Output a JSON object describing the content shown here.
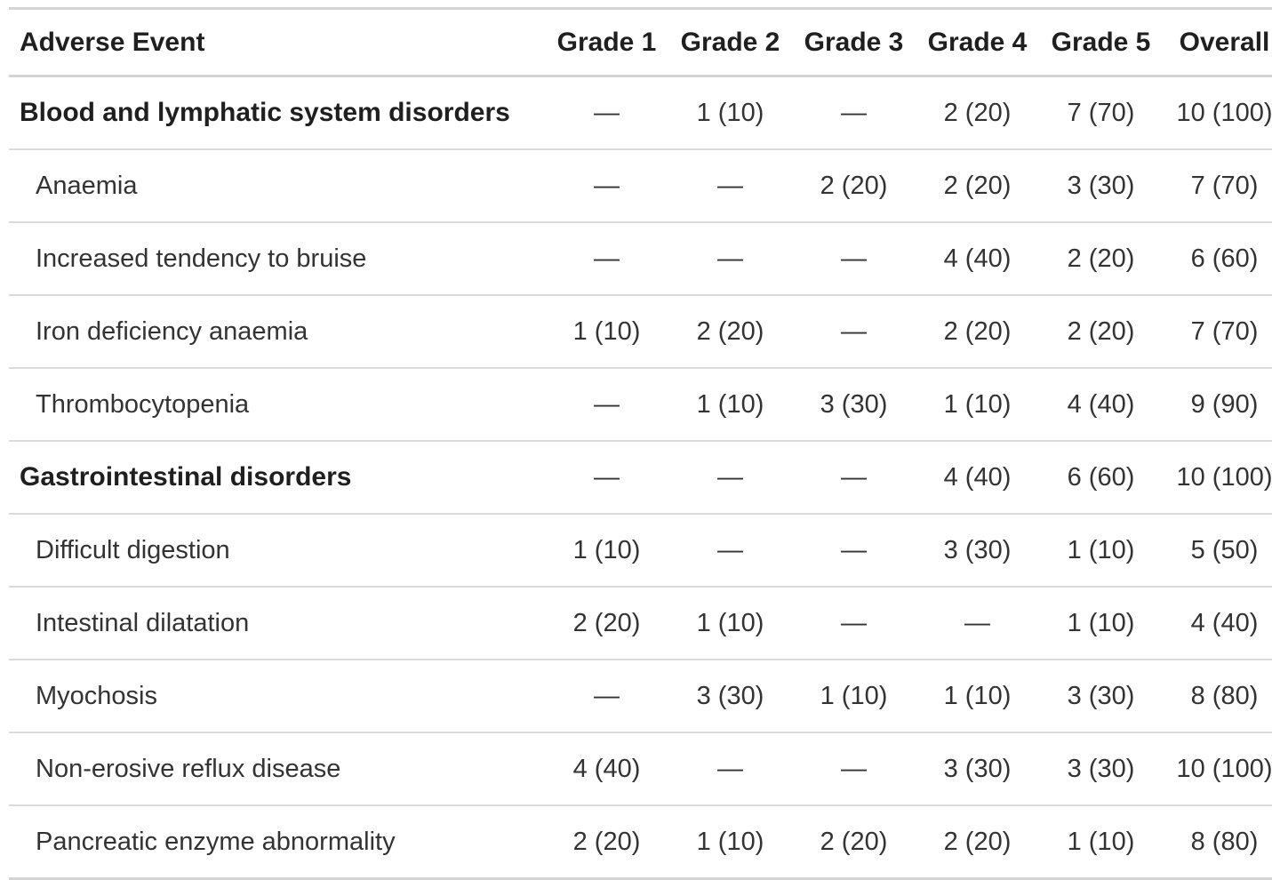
{
  "table": {
    "columns": [
      "Adverse Event",
      "Grade 1",
      "Grade 2",
      "Grade 3",
      "Grade 4",
      "Grade 5",
      "Overall"
    ],
    "rows": [
      {
        "label": "Blood and lymphatic system disorders",
        "type": "category",
        "values": [
          "—",
          "1 (10)",
          "—",
          "2 (20)",
          "7 (70)",
          "10 (100)"
        ]
      },
      {
        "label": "Anaemia",
        "type": "item",
        "values": [
          "—",
          "—",
          "2 (20)",
          "2 (20)",
          "3 (30)",
          "7 (70)"
        ]
      },
      {
        "label": "Increased tendency to bruise",
        "type": "item",
        "values": [
          "—",
          "—",
          "—",
          "4 (40)",
          "2 (20)",
          "6 (60)"
        ]
      },
      {
        "label": "Iron deficiency anaemia",
        "type": "item",
        "values": [
          "1 (10)",
          "2 (20)",
          "—",
          "2 (20)",
          "2 (20)",
          "7 (70)"
        ]
      },
      {
        "label": "Thrombocytopenia",
        "type": "item",
        "values": [
          "—",
          "1 (10)",
          "3 (30)",
          "1 (10)",
          "4 (40)",
          "9 (90)"
        ]
      },
      {
        "label": "Gastrointestinal disorders",
        "type": "category",
        "values": [
          "—",
          "—",
          "—",
          "4 (40)",
          "6 (60)",
          "10 (100)"
        ]
      },
      {
        "label": "Difficult digestion",
        "type": "item",
        "values": [
          "1 (10)",
          "—",
          "—",
          "3 (30)",
          "1 (10)",
          "5 (50)"
        ]
      },
      {
        "label": "Intestinal dilatation",
        "type": "item",
        "values": [
          "2 (20)",
          "1 (10)",
          "—",
          "—",
          "1 (10)",
          "4 (40)"
        ]
      },
      {
        "label": "Myochosis",
        "type": "item",
        "values": [
          "—",
          "3 (30)",
          "1 (10)",
          "1 (10)",
          "3 (30)",
          "8 (80)"
        ]
      },
      {
        "label": "Non-erosive reflux disease",
        "type": "item",
        "values": [
          "4 (40)",
          "—",
          "—",
          "3 (30)",
          "3 (30)",
          "10 (100)"
        ]
      },
      {
        "label": "Pancreatic enzyme abnormality",
        "type": "item",
        "values": [
          "2 (20)",
          "1 (10)",
          "2 (20)",
          "2 (20)",
          "1 (10)",
          "8 (80)"
        ]
      }
    ],
    "colors": {
      "border": "#d4d4d4",
      "row_divider": "#dbdbdb",
      "header_text": "#1f1f1f",
      "body_text": "#333333",
      "background": "#ffffff"
    }
  }
}
